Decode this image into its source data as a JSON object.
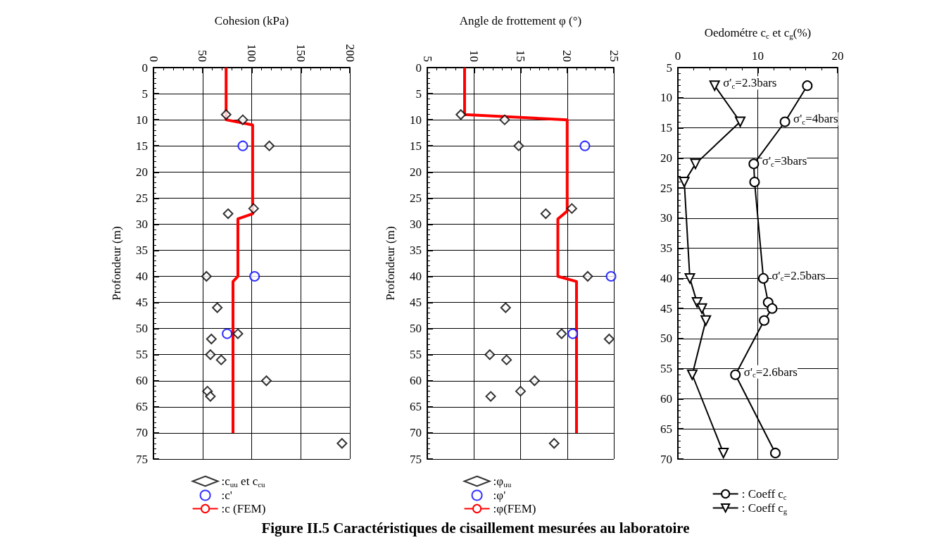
{
  "chart_data": [
    {
      "type": "scatter",
      "xlabel": "Cohesion (kPa)",
      "ylabel": "Profondeur (m)",
      "xlim": [
        0,
        200
      ],
      "xticks": [
        0,
        50,
        100,
        150,
        200
      ],
      "ylim": [
        75,
        0
      ],
      "yticks": [
        0,
        5,
        10,
        15,
        20,
        25,
        30,
        35,
        40,
        45,
        50,
        55,
        60,
        65,
        70,
        75
      ],
      "grid": true,
      "legend": "bottom",
      "series": [
        {
          "name": ":c$_{uu}$ et c$_{cu}$",
          "color": "#000000",
          "marker": "diamond",
          "x": [
            74,
            91,
            118,
            102,
            76,
            54,
            65,
            86,
            59,
            58,
            69,
            115,
            55,
            58,
            192
          ],
          "values": [
            9,
            10,
            15,
            27,
            28,
            40,
            46,
            51,
            52,
            55,
            56,
            60,
            62,
            63,
            72
          ]
        },
        {
          "name": ":c'",
          "color": "#0000ff",
          "marker": "circle",
          "x": [
            91,
            103,
            75
          ],
          "values": [
            15,
            40,
            51
          ]
        },
        {
          "name": ":c (FEM)",
          "type": "line",
          "color": "#ff0000",
          "marker": "none",
          "x": [
            74,
            74,
            101,
            101,
            86,
            86,
            81,
            81
          ],
          "values": [
            0,
            10,
            11,
            28,
            29,
            40,
            41,
            70
          ]
        }
      ]
    },
    {
      "type": "scatter",
      "xlabel": "Angle de frottement φ (°)",
      "ylabel": "Profondeur (m)",
      "xlim": [
        5,
        25
      ],
      "xticks": [
        5,
        10,
        15,
        20,
        25
      ],
      "ylim": [
        75,
        0
      ],
      "yticks": [
        0,
        5,
        10,
        15,
        20,
        25,
        30,
        35,
        40,
        45,
        50,
        55,
        60,
        65,
        70,
        75
      ],
      "grid": true,
      "legend": "bottom",
      "annotations": [
        "Figure II.5 Caractéristiques de cisaillement mesurées au laboratoire"
      ],
      "series": [
        {
          "name": ":φ$_{uu}$",
          "color": "#000000",
          "marker": "diamond",
          "x": [
            8.6,
            13.3,
            14.8,
            20.5,
            17.7,
            22.2,
            13.4,
            19.4,
            24.5,
            11.7,
            13.5,
            16.5,
            15.0,
            11.8,
            18.6
          ],
          "values": [
            9,
            10,
            15,
            27,
            28,
            40,
            46,
            51,
            52,
            55,
            56,
            60,
            62,
            63,
            72
          ]
        },
        {
          "name": ":φ'",
          "color": "#0000ff",
          "marker": "circle",
          "x": [
            21.9,
            24.7,
            20.6
          ],
          "values": [
            15,
            40,
            51
          ]
        },
        {
          "name": ":φ(FEM)",
          "type": "line",
          "color": "#ff0000",
          "marker": "none",
          "x": [
            9,
            9,
            20,
            20,
            19,
            19,
            21,
            21
          ],
          "values": [
            0,
            9,
            10,
            27.5,
            29,
            40,
            41,
            70
          ]
        }
      ]
    },
    {
      "type": "line",
      "xlabel": "Oedométre c$_{c}$ et c$_{g}$(%)",
      "xlim": [
        0,
        20
      ],
      "xticks": [
        0,
        10,
        20
      ],
      "ylim": [
        70,
        5
      ],
      "yticks": [
        5,
        10,
        15,
        20,
        25,
        30,
        35,
        40,
        45,
        50,
        55,
        60,
        65,
        70
      ],
      "grid": true,
      "legend": "bottom",
      "annotations": [
        {
          "text": "σ'$_{c}$=2.3bars",
          "x": 4.6,
          "y": 8
        },
        {
          "text": "σ'$_{c}$=4bars",
          "x": 13.4,
          "y": 14
        },
        {
          "text": "σ'$_{c}$=3bars",
          "x": 9.5,
          "y": 21
        },
        {
          "text": "σ'$_{c}$=2.5bars",
          "x": 10.7,
          "y": 40
        },
        {
          "text": "σ'$_{c}$=2.6bars",
          "x": 7.2,
          "y": 56
        }
      ],
      "series": [
        {
          "name": ": Coeff c$_{c}$",
          "color": "#000000",
          "marker": "circle",
          "x": [
            16.2,
            13.4,
            9.5,
            9.6,
            10.7,
            11.3,
            11.8,
            10.8,
            7.2,
            12.2
          ],
          "values": [
            8,
            14,
            21,
            24,
            40,
            44,
            45,
            47,
            56,
            69
          ]
        },
        {
          "name": ": Coeff c$_{g}$",
          "color": "#000000",
          "marker": "triangle",
          "x": [
            4.6,
            7.8,
            2.2,
            0.8,
            1.5,
            2.4,
            3.0,
            3.5,
            1.8,
            5.7
          ],
          "values": [
            8,
            14,
            21,
            24,
            40,
            44,
            45,
            47,
            56,
            69
          ]
        }
      ]
    }
  ]
}
